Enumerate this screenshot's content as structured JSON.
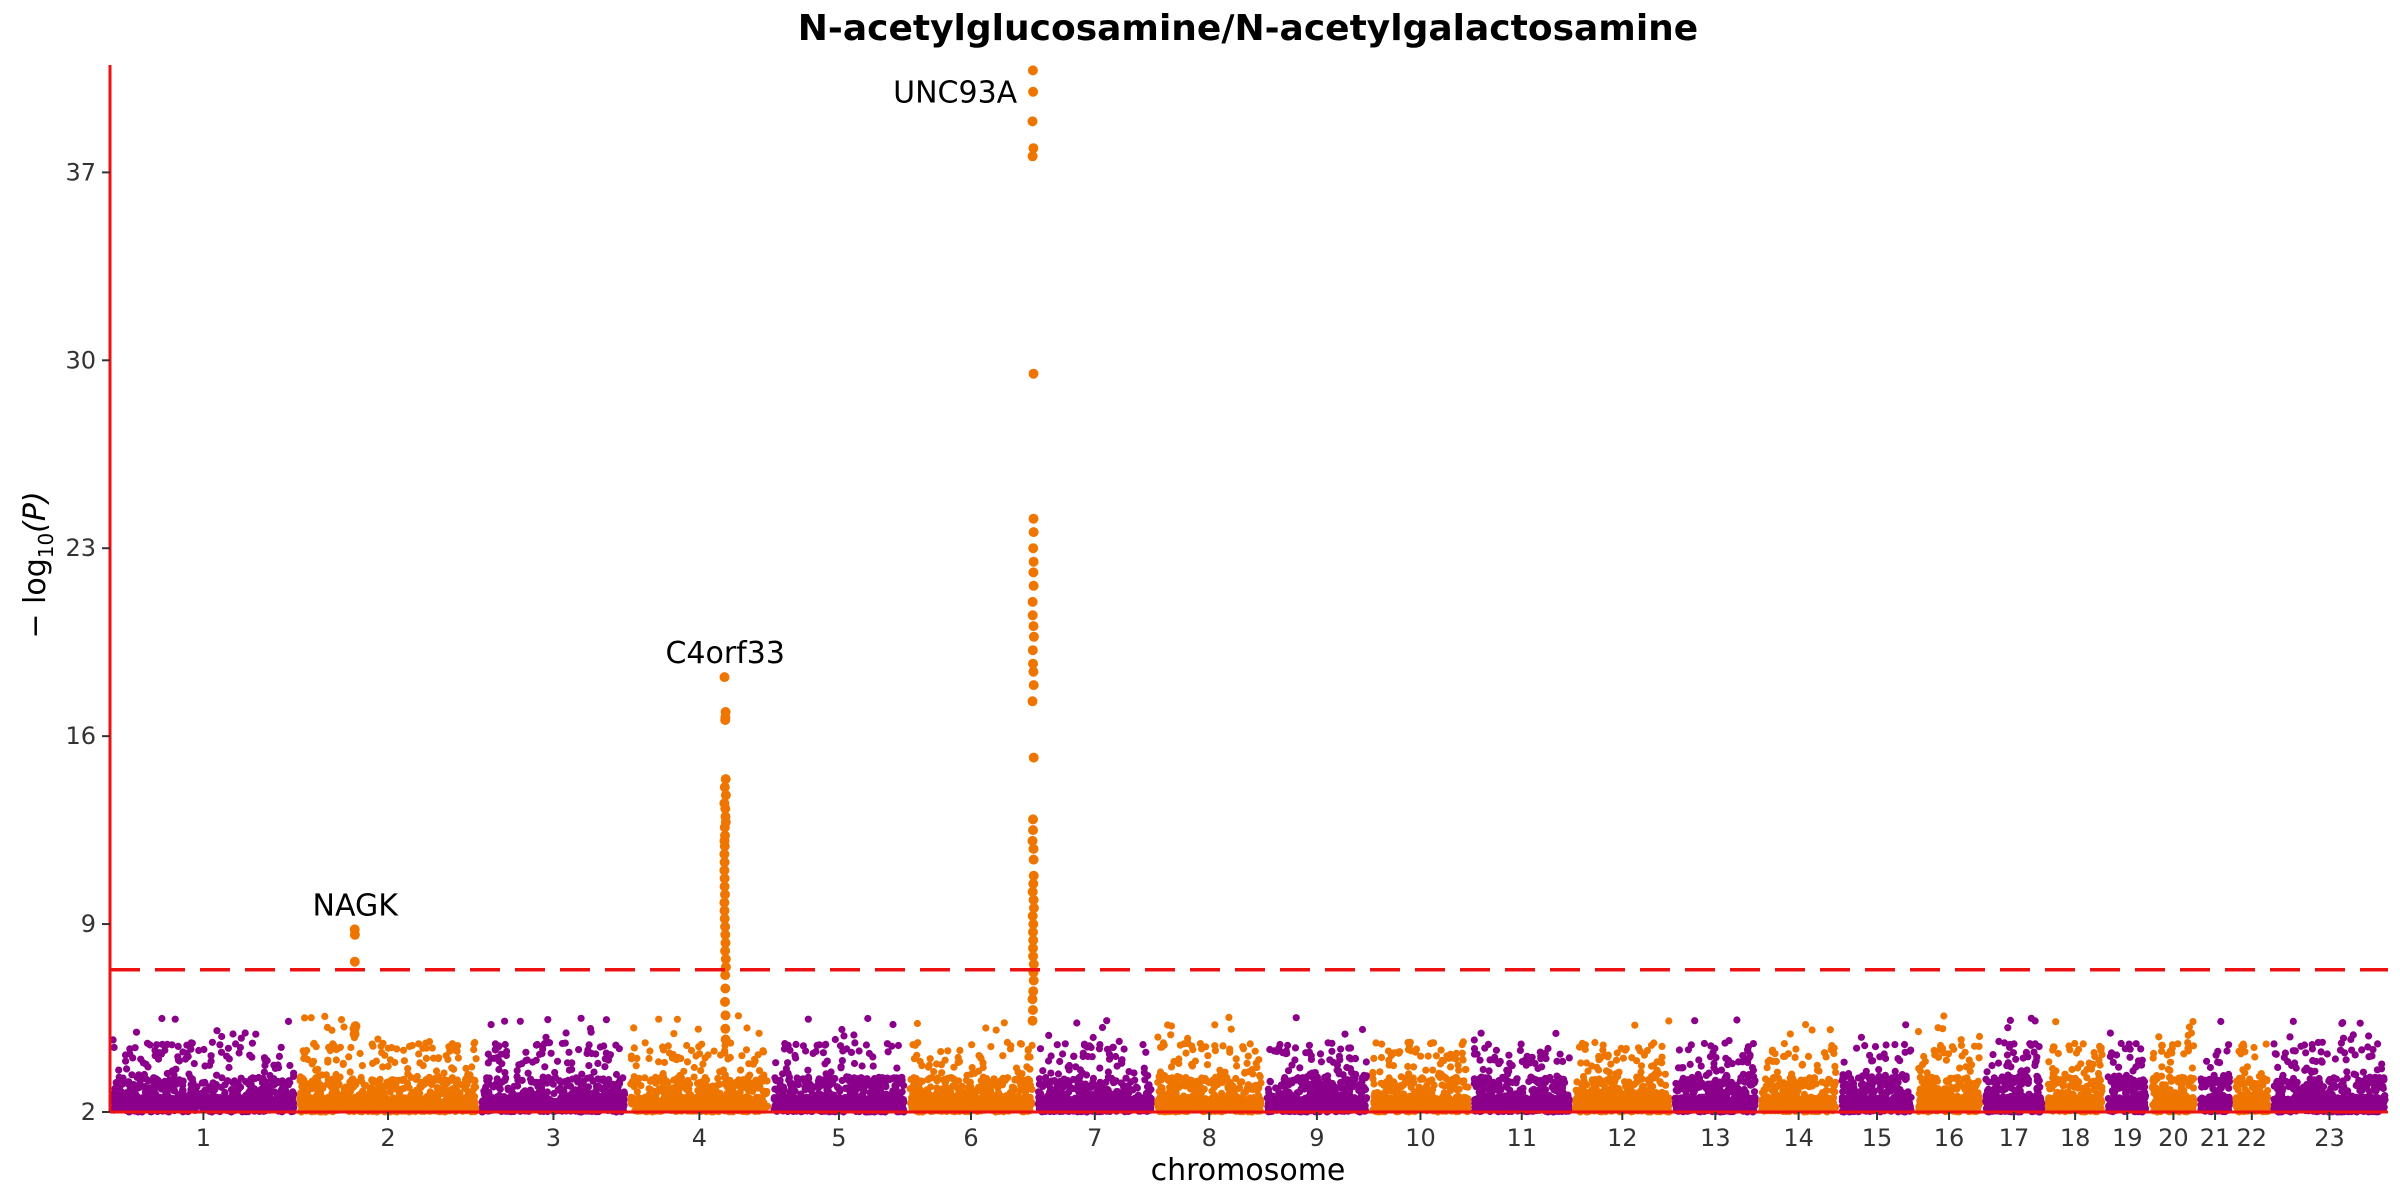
{
  "chart_data": {
    "type": "scatter",
    "subtype": "manhattan",
    "title": "N-acetylglucosamine/N-acetylgalactosamine",
    "xlabel": "chromosome",
    "ylabel_main": "− log",
    "ylabel_sub": "10",
    "ylabel_rest": "(P)",
    "ylim": [
      2,
      41
    ],
    "yticks": [
      2,
      9,
      16,
      23,
      30,
      37
    ],
    "chromosomes": [
      "1",
      "2",
      "3",
      "4",
      "5",
      "6",
      "7",
      "8",
      "9",
      "10",
      "11",
      "12",
      "13",
      "14",
      "15",
      "16",
      "17",
      "18",
      "19",
      "20",
      "21",
      "22",
      "23"
    ],
    "chromosome_sizes": [
      249,
      243,
      198,
      191,
      181,
      171,
      159,
      146,
      141,
      135,
      135,
      133,
      115,
      107,
      102,
      90,
      83,
      80,
      59,
      64,
      47,
      51,
      156
    ],
    "threshold": 7.3,
    "colors": {
      "odd": "#8B008B",
      "even": "#EE7600",
      "threshold": "#EE1111",
      "axis": "#EE1111"
    },
    "peaks": [
      {
        "label": "NAGK",
        "chromosome": "2",
        "position": 0.32,
        "values": [
          8.6,
          8.8,
          7.6,
          5.2,
          5.1,
          4.9
        ]
      },
      {
        "label": "C4orf33",
        "chromosome": "4",
        "position": 0.68,
        "values": [
          18.2,
          16.9,
          16.7,
          16.6,
          14.4,
          14.1,
          13.8,
          13.5,
          13.3,
          13.0,
          12.8,
          12.6,
          12.3,
          12.1,
          11.9,
          11.6,
          11.3,
          11.0,
          10.7,
          10.4,
          10.1,
          9.8,
          9.5,
          9.2,
          8.9,
          8.6,
          8.3,
          8.0,
          7.7,
          7.4,
          7.1,
          6.6,
          6.1,
          5.6,
          5.1,
          4.7
        ]
      },
      {
        "label": "UNC93A",
        "chromosome": "6",
        "position": 0.985,
        "values": [
          40.8,
          40.0,
          38.9,
          37.9,
          37.6,
          29.5,
          24.1,
          23.6,
          23.0,
          22.5,
          22.1,
          21.6,
          21.0,
          20.5,
          20.1,
          19.7,
          19.2,
          18.7,
          18.4,
          17.9,
          17.3,
          15.2,
          12.9,
          12.5,
          12.1,
          11.8,
          11.4,
          10.8,
          10.5,
          10.2,
          9.9,
          9.6,
          9.3,
          9.0,
          8.7,
          8.4,
          8.1,
          7.8,
          7.5,
          7.2,
          6.9,
          6.5,
          6.2,
          5.8,
          5.4
        ]
      }
    ],
    "noise": {
      "floor": 2,
      "typical_max": 4.2,
      "occasional_max": 5.6
    }
  }
}
